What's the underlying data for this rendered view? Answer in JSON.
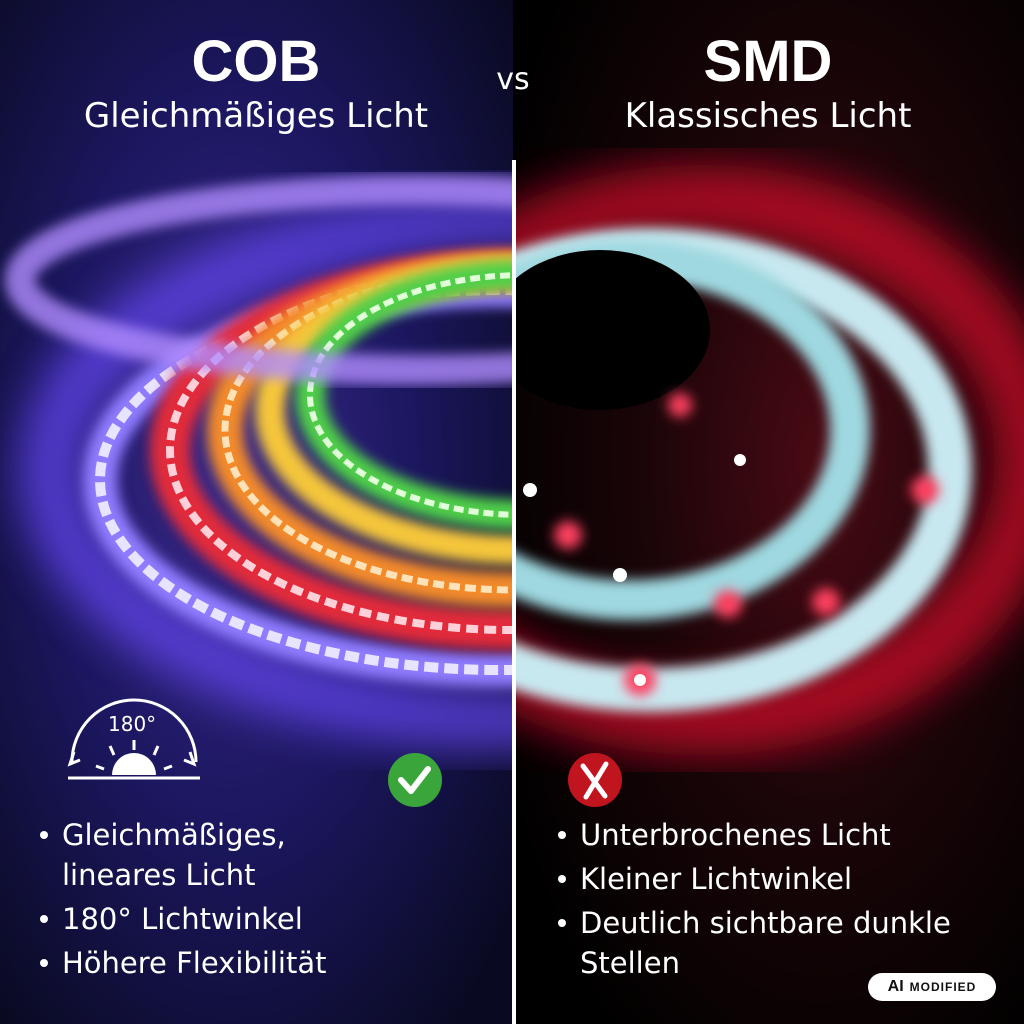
{
  "vs": "vs",
  "left": {
    "title": "COB",
    "subtitle": "Gleichmäßiges Licht",
    "angle_label": "180°",
    "bullets": [
      [
        "Gleichmäßiges,",
        "lineares Licht"
      ],
      [
        "180° Lichtwinkel"
      ],
      [
        "Höhere Flexibilität"
      ]
    ]
  },
  "right": {
    "title": "SMD",
    "subtitle": "Klassisches Licht",
    "bullets": [
      [
        "Unterbrochenes Licht"
      ],
      [
        "Kleiner Lichtwinkel"
      ],
      [
        "Deutlich sichtbare dunkle",
        "Stellen"
      ]
    ]
  },
  "badge": {
    "ai": "AI",
    "modified": "MODIFIED"
  }
}
